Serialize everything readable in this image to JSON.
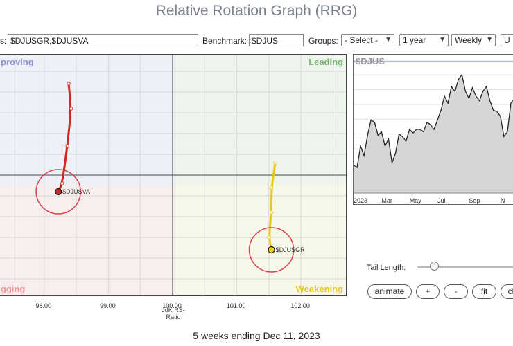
{
  "page": {
    "title": "Relative Rotation Graph (RRG)"
  },
  "controls": {
    "symbols_label": "s:",
    "symbols_value": "$DJUSGR,$DJUSVA",
    "benchmark_label": "Benchmark:",
    "benchmark_value": "$DJUS",
    "groups_label": "Groups:",
    "groups_value": "- Select -",
    "period_value": "1 year",
    "frequency_value": "Weekly",
    "update_label": "U"
  },
  "quadrants": {
    "improving": "proving",
    "leading": "Leading",
    "lagging": "gging",
    "weakening": "Weakening"
  },
  "colors": {
    "improving_bg": "#eef0f7",
    "leading_bg": "#eef5ec",
    "lagging_bg": "#f8eeee",
    "weakening_bg": "#f7f7ea",
    "improving_text": "#8f92d8",
    "leading_text": "#76b46e",
    "lagging_text": "#e89a9a",
    "weakening_text": "#e8c43a",
    "djusva": "#cc2a22",
    "djusgr": "#e8c81e",
    "circle": "#d9404a"
  },
  "chart_data": [
    {
      "type": "scatter",
      "title": "",
      "xlabel": "JdK RS-Ratio",
      "ylabel": "",
      "xlim": [
        97.3,
        102.7
      ],
      "ylim": [
        97.1,
        102.9
      ],
      "x_ticks": [
        98.0,
        99.0,
        100.0,
        101.0,
        102.0
      ],
      "x_tick_labels": [
        "98.00",
        "99.00",
        "100.00",
        "101.00",
        "102.00"
      ],
      "center": [
        100.0,
        100.0
      ],
      "grid": true,
      "series": [
        {
          "name": "$DJUSVA",
          "x": [
            98.38,
            98.42,
            98.36,
            98.28,
            98.22
          ],
          "y": [
            102.2,
            101.6,
            100.7,
            99.8,
            99.6
          ],
          "color": "#cc2a22"
        },
        {
          "name": "$DJUSGR",
          "x": [
            101.6,
            101.54,
            101.54,
            101.5,
            101.54
          ],
          "y": [
            100.3,
            99.7,
            99.1,
            98.5,
            98.2
          ],
          "color": "#e8c81e"
        }
      ],
      "ring_labels": [
        "$DJUSVA",
        "$DJUSGR"
      ]
    },
    {
      "type": "area",
      "title": "$DJUS",
      "x_ticks": [
        "2023",
        "Mar",
        "May",
        "Jul",
        "Sep",
        "N"
      ],
      "ylim": [
        0,
        1
      ],
      "values": [
        0.2,
        0.18,
        0.36,
        0.28,
        0.45,
        0.58,
        0.56,
        0.45,
        0.48,
        0.36,
        0.42,
        0.22,
        0.3,
        0.46,
        0.44,
        0.4,
        0.5,
        0.47,
        0.5,
        0.5,
        0.48,
        0.56,
        0.54,
        0.5,
        0.58,
        0.66,
        0.78,
        0.72,
        0.86,
        0.82,
        0.92,
        0.96,
        0.82,
        0.76,
        0.85,
        0.78,
        0.74,
        0.82,
        0.86,
        0.74,
        0.66,
        0.65,
        0.61,
        0.44,
        0.48,
        0.72,
        0.76
      ]
    }
  ],
  "tail": {
    "label": "Tail Length:",
    "value": 1
  },
  "buttons": {
    "animate": "animate",
    "plus": "+",
    "minus": "-",
    "fit": "fit",
    "clear": "cl"
  },
  "footer": {
    "text": "5 weeks ending Dec 11, 2023"
  }
}
